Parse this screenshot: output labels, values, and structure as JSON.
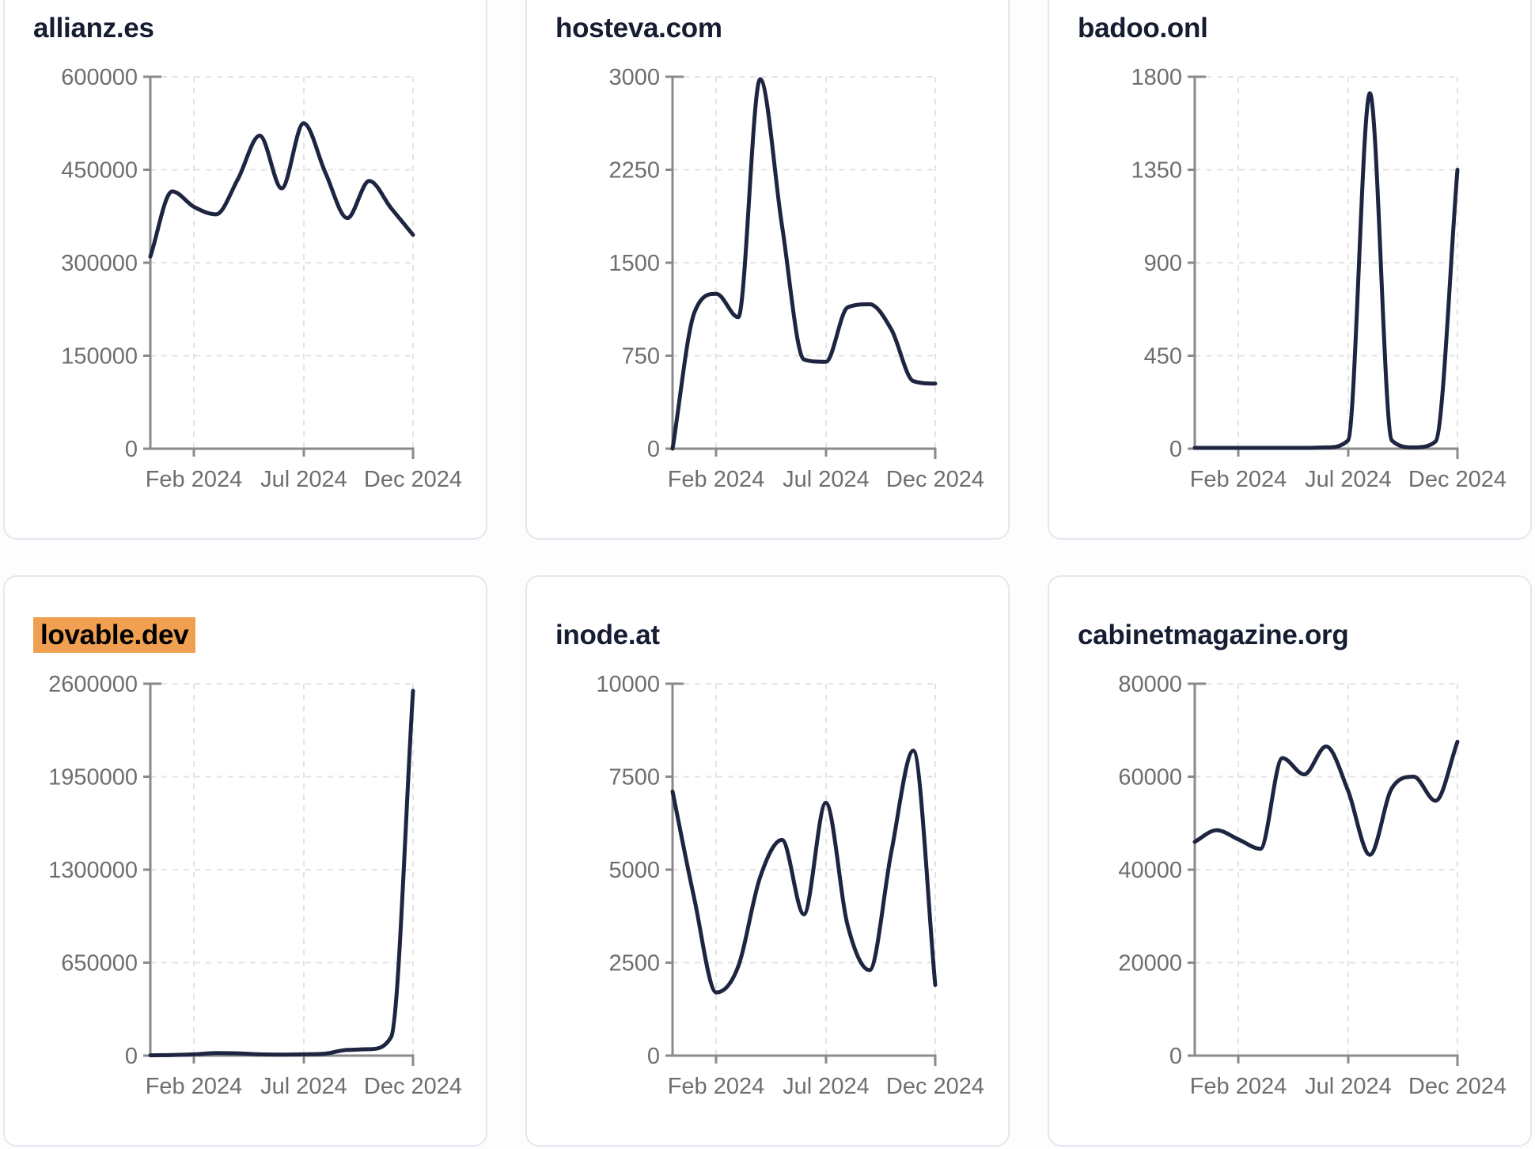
{
  "page": {
    "background": "#fdfdfe"
  },
  "colors": {
    "card_background": "#ffffff",
    "card_border": "#e5e7f0",
    "title_text": "#161d33",
    "line": "#1d2540",
    "axis": "#8a8a8a",
    "gridline": "#e3e3e3",
    "tick_label": "#6e6e6e",
    "highlight": "#f0a050"
  },
  "chart_data": [
    {
      "type": "line",
      "title": "allianz.es",
      "highlighted": false,
      "x_tick_labels": [
        "Feb 2024",
        "Jul 2024",
        "Dec 2024"
      ],
      "y_ticks": [
        0,
        150000,
        300000,
        450000,
        600000
      ],
      "ylim": [
        0,
        600000
      ],
      "grid": "dashed",
      "legend": "none",
      "values": [
        310000,
        415000,
        390000,
        378000,
        435000,
        505000,
        420000,
        525000,
        445000,
        372000,
        432000,
        388000,
        345000
      ]
    },
    {
      "type": "line",
      "title": "hosteva.com",
      "highlighted": false,
      "x_tick_labels": [
        "Feb 2024",
        "Jul 2024",
        "Dec 2024"
      ],
      "y_ticks": [
        0,
        750,
        1500,
        2250,
        3000
      ],
      "ylim": [
        0,
        3000
      ],
      "grid": "dashed",
      "legend": "none",
      "values": [
        0,
        1100,
        1250,
        1060,
        2980,
        1800,
        720,
        700,
        1140,
        1165,
        960,
        545,
        525
      ]
    },
    {
      "type": "line",
      "title": "badoo.onl",
      "highlighted": false,
      "x_tick_labels": [
        "Feb 2024",
        "Jul 2024",
        "Dec 2024"
      ],
      "y_ticks": [
        0,
        450,
        900,
        1350,
        1800
      ],
      "ylim": [
        0,
        1800
      ],
      "grid": "dashed",
      "legend": "none",
      "values": [
        4,
        4,
        4,
        4,
        4,
        4,
        6,
        40,
        1720,
        40,
        6,
        35,
        1350
      ]
    },
    {
      "type": "line",
      "title": "lovable.dev",
      "highlighted": true,
      "x_tick_labels": [
        "Feb 2024",
        "Jul 2024",
        "Dec 2024"
      ],
      "y_ticks": [
        0,
        650000,
        1300000,
        1950000,
        2600000
      ],
      "ylim": [
        0,
        2600000
      ],
      "grid": "dashed",
      "legend": "none",
      "values": [
        2000,
        4000,
        9000,
        18000,
        16000,
        9000,
        7000,
        9000,
        14000,
        40000,
        45000,
        130000,
        2550000
      ]
    },
    {
      "type": "line",
      "title": "inode.at",
      "highlighted": false,
      "x_tick_labels": [
        "Feb 2024",
        "Jul 2024",
        "Dec 2024"
      ],
      "y_ticks": [
        0,
        2500,
        5000,
        7500,
        10000
      ],
      "ylim": [
        0,
        10000
      ],
      "grid": "dashed",
      "legend": "none",
      "values": [
        7100,
        4200,
        1700,
        2400,
        4800,
        5800,
        3800,
        6800,
        3500,
        2300,
        5500,
        8200,
        1900
      ]
    },
    {
      "type": "line",
      "title": "cabinetmagazine.org",
      "highlighted": false,
      "x_tick_labels": [
        "Feb 2024",
        "Jul 2024",
        "Dec 2024"
      ],
      "y_ticks": [
        0,
        20000,
        40000,
        60000,
        80000
      ],
      "ylim": [
        0,
        80000
      ],
      "grid": "dashed",
      "legend": "none",
      "values": [
        46000,
        48500,
        46500,
        44500,
        64000,
        60500,
        66500,
        57000,
        43200,
        57500,
        60000,
        54800,
        67500
      ]
    }
  ]
}
